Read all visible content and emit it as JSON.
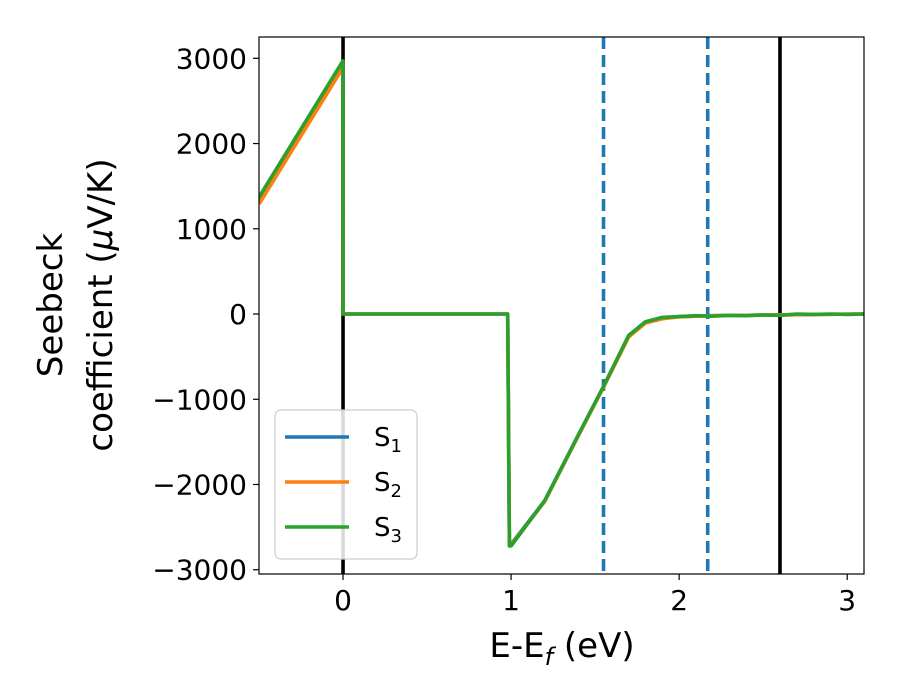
{
  "chart_data": {
    "type": "line",
    "title": "",
    "xlabel": {
      "main": "E-E",
      "sub": "f",
      "unit": " (eV)"
    },
    "ylabel": {
      "line1": "Seebeck",
      "line2_prefix": "coefficient  (",
      "line2_mu": "μ",
      "line2_suffix": "V/K)"
    },
    "xlim": [
      -0.5,
      3.1
    ],
    "ylim": [
      -3050,
      3250
    ],
    "xticks": [
      0,
      1,
      2,
      3
    ],
    "xtick_labels": [
      "0",
      "1",
      "2",
      "3"
    ],
    "yticks": [
      -3000,
      -2000,
      -1000,
      0,
      1000,
      2000,
      3000
    ],
    "ytick_labels": [
      "−3000",
      "−2000",
      "−1000",
      "0",
      "1000",
      "2000",
      "3000"
    ],
    "grid": false,
    "legend_position": "lower-left",
    "series": [
      {
        "name": "S1",
        "label_main": "S",
        "label_sub": "1",
        "color": "#1f77b4",
        "x": [
          -0.5,
          -0.001,
          0.0,
          0.98,
          0.99,
          1.0,
          1.2,
          1.4,
          1.55,
          1.7,
          1.8,
          1.9,
          2.0,
          2.2,
          2.4,
          2.6,
          2.8,
          3.1
        ],
        "y": [
          1330,
          2930,
          0,
          0,
          -2700,
          -2700,
          -2190,
          -1420,
          -850,
          -260,
          -100,
          -50,
          -30,
          -20,
          -15,
          -10,
          -5,
          0
        ]
      },
      {
        "name": "S2",
        "label_main": "S",
        "label_sub": "2",
        "color": "#ff7f0e",
        "x": [
          -0.5,
          -0.001,
          0.0,
          0.98,
          0.99,
          1.0,
          1.2,
          1.4,
          1.55,
          1.7,
          1.8,
          1.9,
          2.0,
          2.2,
          2.4,
          2.6,
          2.8,
          3.1
        ],
        "y": [
          1290,
          2890,
          0,
          0,
          -2710,
          -2710,
          -2200,
          -1430,
          -860,
          -270,
          -105,
          -55,
          -32,
          -20,
          -15,
          -10,
          -5,
          0
        ]
      },
      {
        "name": "S3",
        "label_main": "S",
        "label_sub": "3",
        "color": "#2ca02c",
        "x": [
          -0.5,
          -0.001,
          0.0,
          0.98,
          0.99,
          1.0,
          1.2,
          1.4,
          1.55,
          1.7,
          1.8,
          1.9,
          2.0,
          2.1,
          2.2,
          2.3,
          2.4,
          2.5,
          2.6,
          2.7,
          2.8,
          2.9,
          3.0,
          3.1
        ],
        "y": [
          1370,
          2970,
          0,
          0,
          -2720,
          -2720,
          -2190,
          -1420,
          -850,
          -250,
          -90,
          -40,
          -30,
          -20,
          -25,
          -15,
          -20,
          -10,
          -15,
          0,
          -5,
          0,
          -5,
          0
        ]
      }
    ],
    "vlines": [
      {
        "x": 0.0,
        "style": "solid",
        "color": "#000000"
      },
      {
        "x": 2.6,
        "style": "solid",
        "color": "#000000"
      },
      {
        "x": 1.55,
        "style": "dashed",
        "color": "#1f77b4"
      },
      {
        "x": 2.17,
        "style": "dashed",
        "color": "#1f77b4"
      }
    ]
  }
}
